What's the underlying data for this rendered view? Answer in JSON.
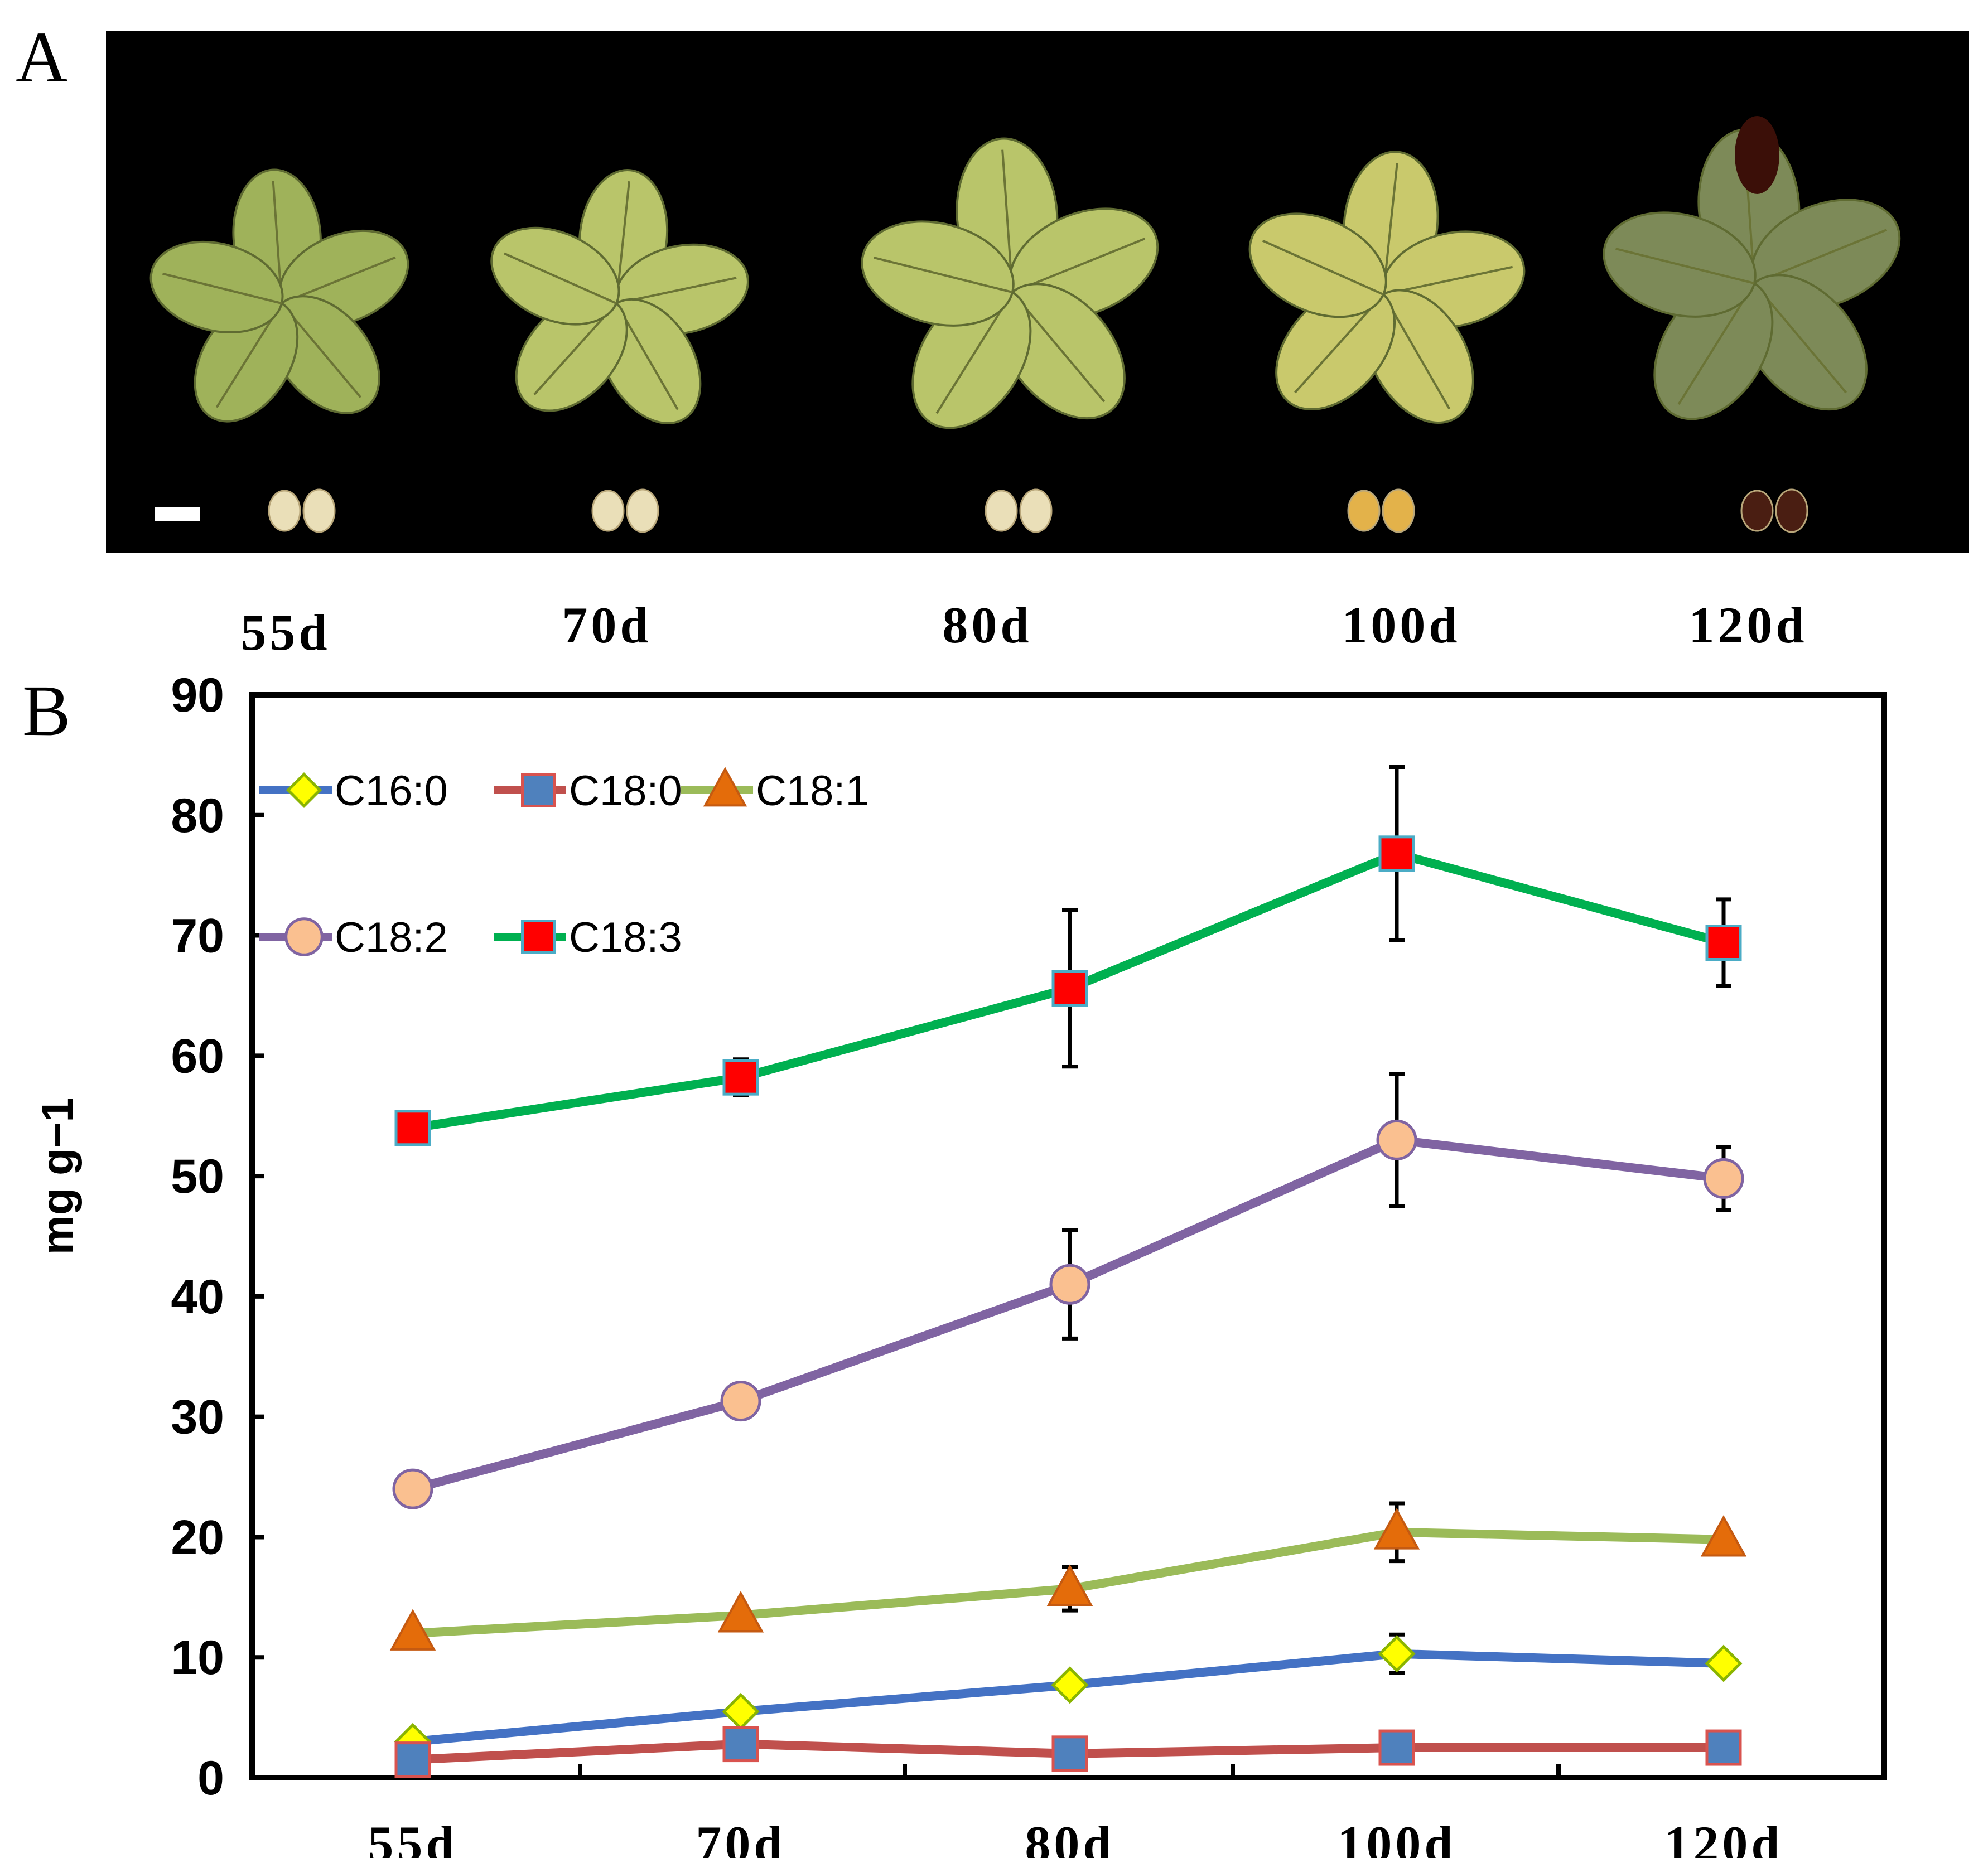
{
  "panels": {
    "a": "A",
    "b": "B"
  },
  "stages": [
    "55d",
    "70d",
    "80d",
    "100d",
    "120d"
  ],
  "colors": {
    "background": "#000000",
    "pod_young": "#9fb25a",
    "pod_mid": "#b9c56a",
    "pod_ripe": "#c9c96c",
    "pod_mature": "#7d8a58",
    "seed_white": "#eadfb8",
    "seed_yellow": "#e3b24a",
    "seed_dark": "#4a1e12"
  },
  "chart_data": {
    "type": "line",
    "categories": [
      "55d",
      "70d",
      "80d",
      "100d",
      "120d"
    ],
    "xlabel": "",
    "ylabel": "mg g−1",
    "ylim": [
      0,
      90
    ],
    "yticks": [
      0,
      10,
      20,
      30,
      40,
      50,
      60,
      70,
      80,
      90
    ],
    "grid": false,
    "legend": {
      "position": "top-left",
      "rows": [
        [
          "C16:0",
          "C18:0",
          "C18:1"
        ],
        [
          "C18:2",
          "C18:3"
        ]
      ]
    },
    "series": [
      {
        "name": "C16:0",
        "values": [
          3.0,
          5.5,
          7.7,
          10.3,
          9.5
        ],
        "errors": [
          0.3,
          0.4,
          0.6,
          1.6,
          0.3
        ],
        "line_color": "#4472c4",
        "marker": "diamond",
        "marker_fill": "#ffff00",
        "marker_stroke": "#8ab400"
      },
      {
        "name": "C18:0",
        "values": [
          1.5,
          2.8,
          2.0,
          2.5,
          2.5
        ],
        "errors": [
          0.2,
          0.2,
          0.2,
          0.3,
          0.2
        ],
        "line_color": "#c0504d",
        "marker": "square",
        "marker_fill": "#4f81bd",
        "marker_stroke": "#d9534f"
      },
      {
        "name": "C18:1",
        "values": [
          12.0,
          13.5,
          15.7,
          20.4,
          19.8
        ],
        "errors": [
          0.4,
          0.4,
          1.8,
          2.4,
          0.5
        ],
        "line_color": "#9bbb59",
        "marker": "triangle",
        "marker_fill": "#e46c0a",
        "marker_stroke": "#c55a11"
      },
      {
        "name": "C18:2",
        "values": [
          24.0,
          31.3,
          41.0,
          53.0,
          49.8
        ],
        "errors": [
          0.5,
          0.6,
          4.5,
          5.5,
          2.6
        ],
        "line_color": "#8064a2",
        "marker": "circle",
        "marker_fill": "#fac090",
        "marker_stroke": "#8064a2"
      },
      {
        "name": "C18:3",
        "values": [
          54.0,
          58.2,
          65.6,
          76.8,
          69.4
        ],
        "errors": [
          0.5,
          1.5,
          6.5,
          7.2,
          3.6
        ],
        "line_color": "#00b050",
        "marker": "square",
        "marker_fill": "#ff0000",
        "marker_stroke": "#4bacc6"
      }
    ]
  }
}
